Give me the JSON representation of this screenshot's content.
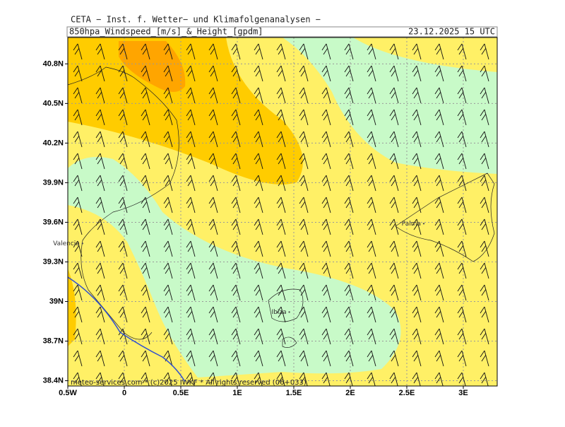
{
  "header": {
    "source": "CETA − Inst. f. Wetter− und Klimafolgenanalysen −",
    "title": "850hpa_Windspeed_[m/s]_&_Height_[gpdm]",
    "date": "23.12.2025 15 UTC"
  },
  "map": {
    "xlim": [
      -0.5,
      3.3
    ],
    "ylim": [
      38.36,
      41.0
    ],
    "grid": true,
    "xticks": [
      {
        "value": -0.5,
        "label": "0.5W"
      },
      0,
      {
        "value": 0.5,
        "label": "0.5E"
      },
      {
        "value": 1,
        "label": "1E"
      },
      {
        "value": 1.5,
        "label": "1.5E"
      },
      {
        "value": 2,
        "label": "2E"
      },
      {
        "value": 2.5,
        "label": "2.5E"
      },
      {
        "value": 3,
        "label": "3E"
      }
    ],
    "yticks": [
      {
        "value": 38.4,
        "label": "38.4N"
      },
      {
        "value": 38.7,
        "label": "38.7N"
      },
      {
        "value": 39,
        "label": "39N"
      },
      {
        "value": 39.3,
        "label": "39.3N"
      },
      {
        "value": 39.6,
        "label": "39.6N"
      },
      {
        "value": 39.9,
        "label": "39.9N"
      },
      {
        "value": 40.2,
        "label": "40.2N"
      },
      {
        "value": 40.5,
        "label": "40.5N"
      },
      {
        "value": 40.8,
        "label": "40.8N"
      }
    ],
    "places": [
      {
        "name": "Valencia",
        "lon": -0.37,
        "lat": 39.44
      },
      {
        "name": "Palma",
        "lon": 2.65,
        "lat": 39.59
      },
      {
        "name": "Ibiza",
        "lon": 1.46,
        "lat": 38.92
      }
    ]
  },
  "footer": "meteo-services.com * (c)2025 IWKF * All rights reserved (06+033)"
}
